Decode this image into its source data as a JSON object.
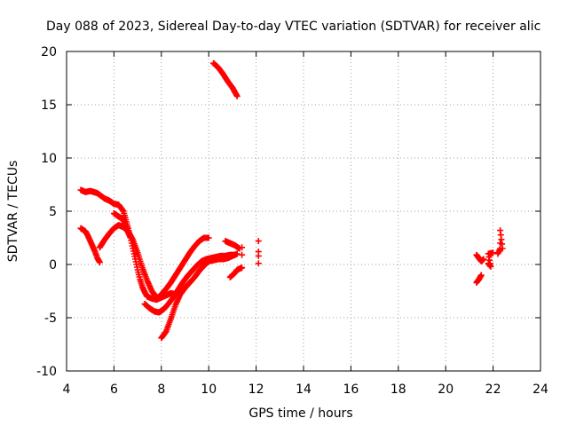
{
  "chart_data": {
    "type": "scatter",
    "title": "Day 088 of 2023, Sidereal Day-to-day VTEC variation (SDTVAR) for receiver alic",
    "xlabel": "GPS time / hours",
    "ylabel": "SDTVAR / TECUs",
    "xlim": [
      4,
      24
    ],
    "ylim": [
      -10,
      20
    ],
    "x_ticks": [
      4,
      6,
      8,
      10,
      12,
      14,
      16,
      18,
      20,
      22,
      24
    ],
    "y_ticks": [
      -10,
      -5,
      0,
      5,
      10,
      15,
      20
    ],
    "x_tick_labels": [
      "4",
      "6",
      "8",
      "10",
      "12",
      "14",
      "16",
      "18",
      "20",
      "22",
      "24"
    ],
    "y_tick_labels": [
      "-10",
      "-5",
      "0",
      "5",
      "10",
      "15",
      "20"
    ],
    "grid": true,
    "marker": "+",
    "series_color": "#ff0000",
    "series": [
      {
        "name": "SDTVAR",
        "tracks": [
          [
            [
              4.6,
              7.0
            ],
            [
              4.8,
              6.8
            ],
            [
              5.0,
              6.9
            ],
            [
              5.3,
              6.7
            ],
            [
              5.6,
              6.2
            ],
            [
              5.8,
              6.0
            ],
            [
              6.0,
              5.7
            ],
            [
              6.2,
              5.6
            ],
            [
              6.4,
              5.0
            ],
            [
              6.5,
              4.2
            ],
            [
              6.6,
              3.4
            ],
            [
              6.7,
              2.5
            ],
            [
              6.8,
              1.5
            ],
            [
              6.9,
              0.5
            ],
            [
              7.0,
              -0.5
            ],
            [
              7.1,
              -1.4
            ],
            [
              7.2,
              -2.1
            ],
            [
              7.3,
              -2.6
            ],
            [
              7.4,
              -3.0
            ],
            [
              7.6,
              -3.2
            ],
            [
              7.8,
              -3.3
            ],
            [
              8.0,
              -3.1
            ],
            [
              8.2,
              -2.9
            ],
            [
              8.4,
              -2.7
            ],
            [
              8.6,
              -2.8
            ],
            [
              8.8,
              -2.4
            ]
          ],
          [
            [
              4.6,
              3.4
            ],
            [
              4.8,
              3.1
            ],
            [
              4.9,
              2.7
            ],
            [
              5.0,
              2.2
            ],
            [
              5.1,
              1.7
            ],
            [
              5.2,
              1.2
            ],
            [
              5.3,
              0.6
            ],
            [
              5.4,
              0.2
            ]
          ],
          [
            [
              5.4,
              1.6
            ],
            [
              5.6,
              2.3
            ],
            [
              5.8,
              2.9
            ],
            [
              6.0,
              3.4
            ],
            [
              6.2,
              3.7
            ],
            [
              6.4,
              3.5
            ],
            [
              6.6,
              3.1
            ],
            [
              6.8,
              2.3
            ],
            [
              7.0,
              1.1
            ],
            [
              7.2,
              -0.3
            ],
            [
              7.4,
              -1.5
            ],
            [
              7.6,
              -2.5
            ],
            [
              7.8,
              -3.1
            ],
            [
              8.0,
              -3.0
            ]
          ],
          [
            [
              6.0,
              4.8
            ],
            [
              6.2,
              4.5
            ],
            [
              6.4,
              4.2
            ],
            [
              6.5,
              3.6
            ],
            [
              6.6,
              3.0
            ],
            [
              6.7,
              2.5
            ]
          ],
          [
            [
              7.3,
              -3.7
            ],
            [
              7.5,
              -4.1
            ],
            [
              7.7,
              -4.4
            ],
            [
              7.9,
              -4.5
            ],
            [
              8.1,
              -4.2
            ],
            [
              8.3,
              -3.7
            ],
            [
              8.5,
              -3.1
            ],
            [
              8.7,
              -2.4
            ],
            [
              8.9,
              -1.7
            ],
            [
              9.1,
              -1.1
            ],
            [
              9.3,
              -0.6
            ],
            [
              9.5,
              -0.1
            ],
            [
              9.7,
              0.3
            ],
            [
              9.9,
              0.5
            ],
            [
              10.1,
              0.6
            ],
            [
              10.3,
              0.7
            ],
            [
              10.5,
              0.8
            ],
            [
              10.7,
              0.8
            ],
            [
              10.9,
              0.9
            ],
            [
              11.1,
              0.9
            ]
          ],
          [
            [
              8.0,
              -6.9
            ],
            [
              8.2,
              -6.3
            ],
            [
              8.4,
              -5.1
            ],
            [
              8.6,
              -3.8
            ],
            [
              8.8,
              -2.8
            ],
            [
              9.0,
              -2.2
            ],
            [
              9.2,
              -1.7
            ],
            [
              9.4,
              -1.2
            ],
            [
              9.6,
              -0.6
            ],
            [
              9.8,
              -0.1
            ],
            [
              10.0,
              0.3
            ],
            [
              10.2,
              0.4
            ],
            [
              10.4,
              0.5
            ],
            [
              10.6,
              0.5
            ],
            [
              10.8,
              0.6
            ],
            [
              11.0,
              0.8
            ],
            [
              11.2,
              1.0
            ]
          ],
          [
            [
              8.0,
              -2.8
            ],
            [
              8.2,
              -2.3
            ],
            [
              8.4,
              -1.7
            ],
            [
              8.6,
              -1.0
            ],
            [
              8.8,
              -0.3
            ],
            [
              9.0,
              0.4
            ],
            [
              9.2,
              1.1
            ],
            [
              9.4,
              1.7
            ],
            [
              9.6,
              2.2
            ],
            [
              9.8,
              2.5
            ],
            [
              10.0,
              2.5
            ]
          ],
          [
            [
              10.2,
              18.9
            ],
            [
              10.4,
              18.5
            ],
            [
              10.6,
              17.9
            ],
            [
              10.8,
              17.2
            ],
            [
              11.0,
              16.6
            ],
            [
              11.2,
              15.8
            ]
          ],
          [
            [
              10.7,
              2.2
            ],
            [
              10.9,
              2.0
            ],
            [
              11.1,
              1.8
            ],
            [
              11.3,
              1.5
            ]
          ],
          [
            [
              10.9,
              -1.2
            ],
            [
              11.1,
              -0.8
            ],
            [
              11.2,
              -0.5
            ],
            [
              11.4,
              -0.3
            ]
          ],
          [
            [
              11.4,
              1.6
            ],
            [
              11.4,
              0.9
            ]
          ],
          [
            [
              12.1,
              2.2
            ],
            [
              12.1,
              1.2
            ],
            [
              12.1,
              0.8
            ],
            [
              12.1,
              0.1
            ]
          ],
          [
            [
              21.3,
              -1.7
            ],
            [
              21.4,
              -1.4
            ],
            [
              21.5,
              -1.0
            ]
          ],
          [
            [
              21.3,
              0.9
            ],
            [
              21.4,
              0.6
            ],
            [
              21.5,
              0.3
            ],
            [
              21.6,
              0.5
            ]
          ],
          [
            [
              21.8,
              0.1
            ],
            [
              21.9,
              -0.2
            ],
            [
              21.8,
              1.0
            ],
            [
              22.0,
              1.1
            ]
          ],
          [
            [
              22.2,
              1.0
            ],
            [
              22.3,
              1.5
            ],
            [
              22.3,
              2.0
            ],
            [
              22.3,
              3.2
            ],
            [
              22.4,
              1.5
            ]
          ]
        ]
      }
    ]
  }
}
